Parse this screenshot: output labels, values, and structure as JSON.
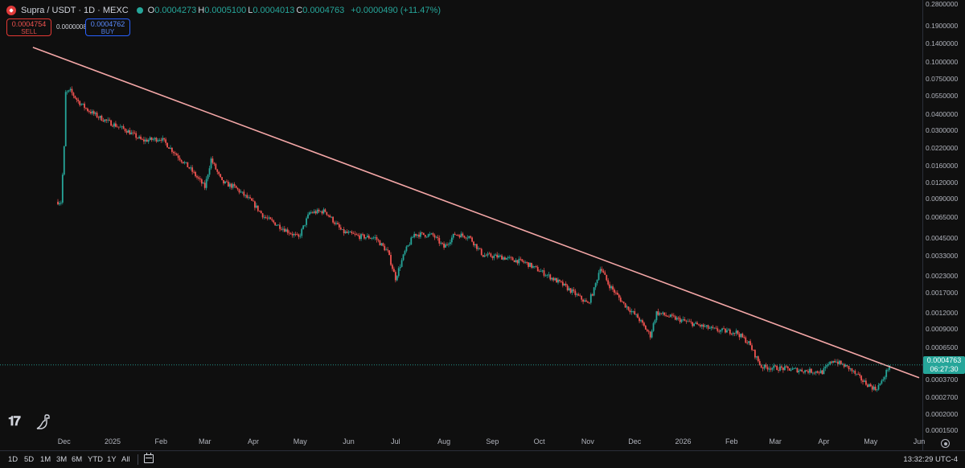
{
  "header": {
    "symbol_title": "Supra / USDT · 1D · MEXC",
    "ohlc": [
      {
        "key": "O",
        "value": "0.0004273"
      },
      {
        "key": "H",
        "value": "0.0005100"
      },
      {
        "key": "L",
        "value": "0.0004013"
      },
      {
        "key": "C",
        "value": "0.0004763"
      }
    ],
    "change": "+0.0000490 (+11.47%)"
  },
  "trade": {
    "sell_price": "0.0004754",
    "sell_label": "SELL",
    "spread": "0.0000008",
    "buy_price": "0.0004762",
    "buy_label": "BUY"
  },
  "price_axis": {
    "scale": "log",
    "ticks": [
      "0.2800000",
      "0.1900000",
      "0.1400000",
      "0.1000000",
      "0.0750000",
      "0.0550000",
      "0.0400000",
      "0.0300000",
      "0.0220000",
      "0.0160000",
      "0.0120000",
      "0.0090000",
      "0.0065000",
      "0.0045000",
      "0.0033000",
      "0.0023000",
      "0.0017000",
      "0.0012000",
      "0.0009000",
      "0.0006500",
      "0.0003700",
      "0.0002700",
      "0.0002000",
      "0.0001500"
    ],
    "current_price": "0.0004763",
    "countdown": "06:27:30"
  },
  "time_axis": {
    "labels": [
      "Dec",
      "2025",
      "Feb",
      "Mar",
      "Apr",
      "May",
      "Jun",
      "Jul",
      "Aug",
      "Sep",
      "Oct",
      "Nov",
      "Dec",
      "2026",
      "Feb",
      "Mar",
      "Apr",
      "May",
      "Jun"
    ]
  },
  "bottom_bar": {
    "ranges": [
      "1D",
      "5D",
      "1M",
      "3M",
      "6M",
      "YTD",
      "1Y",
      "All"
    ],
    "clock": "13:32:29 UTC-4"
  },
  "colors": {
    "up": "#26a69a",
    "down": "#ef5350",
    "trendline": "#f4a7a7",
    "background": "#0f0f0f"
  },
  "icons": [
    "supra-logo-icon",
    "visibility-dot-icon",
    "tradingview-logo-icon",
    "dino-icon",
    "calendar-icon",
    "settings-icon"
  ],
  "chart_data": {
    "type": "candlestick",
    "symbol": "Supra / USDT",
    "interval": "1D",
    "exchange": "MEXC",
    "y_scale": "log",
    "ylim": [
      0.00014,
      0.3
    ],
    "x_start": "2024-11-27",
    "x_end": "2026-06-01",
    "series": [
      {
        "date": "2024-11-27",
        "close": 0.0085
      },
      {
        "date": "2024-11-29",
        "close": 0.0085
      },
      {
        "date": "2024-12-01",
        "close": 0.022
      },
      {
        "date": "2024-12-02",
        "close": 0.058
      },
      {
        "date": "2024-12-05",
        "close": 0.06
      },
      {
        "date": "2024-12-10",
        "close": 0.05
      },
      {
        "date": "2024-12-16",
        "close": 0.043
      },
      {
        "date": "2024-12-23",
        "close": 0.038
      },
      {
        "date": "2024-12-31",
        "close": 0.034
      },
      {
        "date": "2025-01-10",
        "close": 0.03
      },
      {
        "date": "2025-01-20",
        "close": 0.025
      },
      {
        "date": "2025-02-01",
        "close": 0.026
      },
      {
        "date": "2025-02-10",
        "close": 0.02
      },
      {
        "date": "2025-02-20",
        "close": 0.015
      },
      {
        "date": "2025-03-01",
        "close": 0.011
      },
      {
        "date": "2025-03-05",
        "close": 0.018
      },
      {
        "date": "2025-03-12",
        "close": 0.012
      },
      {
        "date": "2025-03-20",
        "close": 0.011
      },
      {
        "date": "2025-03-31",
        "close": 0.0085
      },
      {
        "date": "2025-04-08",
        "close": 0.0065
      },
      {
        "date": "2025-04-18",
        "close": 0.0055
      },
      {
        "date": "2025-04-30",
        "close": 0.0045
      },
      {
        "date": "2025-05-07",
        "close": 0.007
      },
      {
        "date": "2025-05-17",
        "close": 0.0072
      },
      {
        "date": "2025-05-28",
        "close": 0.005
      },
      {
        "date": "2025-06-08",
        "close": 0.0046
      },
      {
        "date": "2025-06-18",
        "close": 0.0045
      },
      {
        "date": "2025-06-26",
        "close": 0.0035
      },
      {
        "date": "2025-07-01",
        "close": 0.0022
      },
      {
        "date": "2025-07-07",
        "close": 0.0035
      },
      {
        "date": "2025-07-13",
        "close": 0.0048
      },
      {
        "date": "2025-07-25",
        "close": 0.0047
      },
      {
        "date": "2025-08-01",
        "close": 0.0038
      },
      {
        "date": "2025-08-08",
        "close": 0.0048
      },
      {
        "date": "2025-08-17",
        "close": 0.0046
      },
      {
        "date": "2025-08-26",
        "close": 0.0033
      },
      {
        "date": "2025-09-07",
        "close": 0.0032
      },
      {
        "date": "2025-09-22",
        "close": 0.0029
      },
      {
        "date": "2025-10-04",
        "close": 0.0024
      },
      {
        "date": "2025-10-15",
        "close": 0.002
      },
      {
        "date": "2025-10-23",
        "close": 0.0017
      },
      {
        "date": "2025-11-01",
        "close": 0.0014
      },
      {
        "date": "2025-11-05",
        "close": 0.0018
      },
      {
        "date": "2025-11-09",
        "close": 0.0027
      },
      {
        "date": "2025-11-14",
        "close": 0.002
      },
      {
        "date": "2025-11-24",
        "close": 0.0014
      },
      {
        "date": "2025-12-03",
        "close": 0.0011
      },
      {
        "date": "2025-12-11",
        "close": 0.0008
      },
      {
        "date": "2025-12-15",
        "close": 0.0012
      },
      {
        "date": "2025-12-25",
        "close": 0.0011
      },
      {
        "date": "2026-01-08",
        "close": 0.00098
      },
      {
        "date": "2026-01-22",
        "close": 0.00088
      },
      {
        "date": "2026-02-04",
        "close": 0.00085
      },
      {
        "date": "2026-02-12",
        "close": 0.0007
      },
      {
        "date": "2026-02-20",
        "close": 0.00046
      },
      {
        "date": "2026-03-03",
        "close": 0.00045
      },
      {
        "date": "2026-03-20",
        "close": 0.00043
      },
      {
        "date": "2026-03-31",
        "close": 0.00042
      },
      {
        "date": "2026-04-07",
        "close": 0.00052
      },
      {
        "date": "2026-04-17",
        "close": 0.00045
      },
      {
        "date": "2026-04-27",
        "close": 0.00035
      },
      {
        "date": "2026-05-04",
        "close": 0.00031
      },
      {
        "date": "2026-05-08",
        "close": 0.00035
      },
      {
        "date": "2026-05-13",
        "close": 0.0004763
      }
    ],
    "trendline": {
      "from": {
        "date": "2024-11-11",
        "price": 0.13
      },
      "to": {
        "date": "2026-06-01",
        "price": 0.00038
      }
    },
    "current_price_line": 0.0004763
  }
}
